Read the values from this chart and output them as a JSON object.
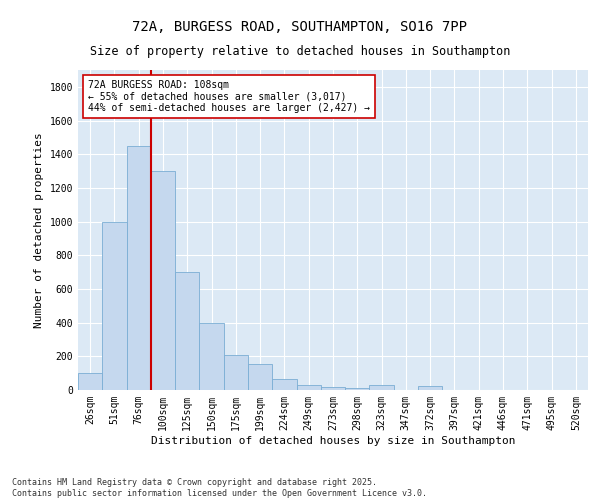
{
  "title1": "72A, BURGESS ROAD, SOUTHAMPTON, SO16 7PP",
  "title2": "Size of property relative to detached houses in Southampton",
  "xlabel": "Distribution of detached houses by size in Southampton",
  "ylabel": "Number of detached properties",
  "categories": [
    "26sqm",
    "51sqm",
    "76sqm",
    "100sqm",
    "125sqm",
    "150sqm",
    "175sqm",
    "199sqm",
    "224sqm",
    "249sqm",
    "273sqm",
    "298sqm",
    "323sqm",
    "347sqm",
    "372sqm",
    "397sqm",
    "421sqm",
    "446sqm",
    "471sqm",
    "495sqm",
    "520sqm"
  ],
  "bar_values": [
    100,
    1000,
    1450,
    1300,
    700,
    400,
    210,
    155,
    65,
    30,
    20,
    10,
    30,
    0,
    25,
    0,
    0,
    0,
    0,
    0,
    0
  ],
  "bar_color": "#c5d8ee",
  "bar_edge_color": "#7aadd4",
  "bar_width": 1.0,
  "vline_x": 3.0,
  "vline_color": "#cc0000",
  "annotation_text": "72A BURGESS ROAD: 108sqm\n← 55% of detached houses are smaller (3,017)\n44% of semi-detached houses are larger (2,427) →",
  "ylim": [
    0,
    1900
  ],
  "yticks": [
    0,
    200,
    400,
    600,
    800,
    1000,
    1200,
    1400,
    1600,
    1800
  ],
  "bg_color": "#dce9f5",
  "footer": "Contains HM Land Registry data © Crown copyright and database right 2025.\nContains public sector information licensed under the Open Government Licence v3.0.",
  "title1_fontsize": 10,
  "title2_fontsize": 8.5,
  "xlabel_fontsize": 8,
  "ylabel_fontsize": 8,
  "tick_fontsize": 7,
  "annotation_fontsize": 7,
  "footer_fontsize": 6
}
